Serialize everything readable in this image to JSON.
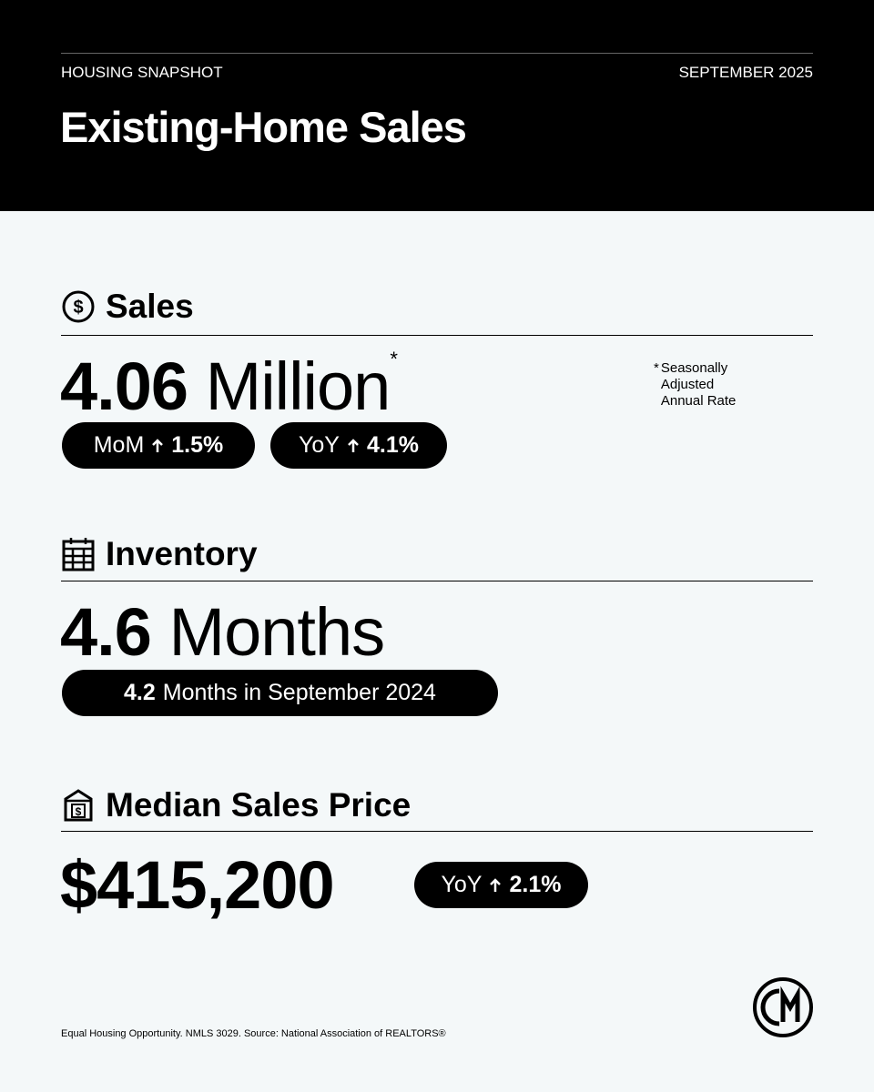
{
  "header": {
    "label": "HOUSING SNAPSHOT",
    "date": "SEPTEMBER 2025",
    "title": "Existing-Home Sales"
  },
  "sales": {
    "heading": "Sales",
    "value": "4.06",
    "unit": "Million",
    "asterisk": "*",
    "note_lines": [
      "Seasonally",
      "Adjusted",
      "Annual Rate"
    ],
    "pills": [
      {
        "label": "MoM",
        "change": "1.5%"
      },
      {
        "label": "YoY",
        "change": "4.1%"
      }
    ]
  },
  "inventory": {
    "heading": "Inventory",
    "value": "4.6",
    "unit": "Months",
    "pill": {
      "value": "4.2",
      "text": "Months in September 2024"
    }
  },
  "price": {
    "heading": "Median Sales Price",
    "value": "$415,200",
    "pill": {
      "label": "YoY",
      "change": "2.1%"
    }
  },
  "footer": {
    "text": "Equal Housing Opportunity. NMLS 3029. Source: National Association of REALTORS®"
  }
}
